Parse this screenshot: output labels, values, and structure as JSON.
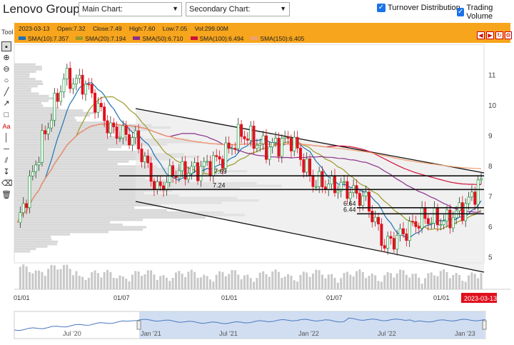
{
  "header": {
    "title": "Lenovo Group",
    "main_chart_select": "Main Chart:",
    "secondary_chart_select": "Secondary Chart:",
    "turnover_distribution": "Turnover Distribution",
    "trading_volume": "Trading Volume"
  },
  "toolbar": {
    "label": "Tool",
    "tools": [
      "cursor-icon",
      "zoom-in-icon",
      "zoom-out-icon",
      "circle-icon",
      "line-icon",
      "arrow-line-icon",
      "rectangle-icon",
      "text-icon",
      "vertical-line-icon",
      "horizontal-line-icon",
      "parallel-lines-icon",
      "measure-icon",
      "eraser-icon",
      "trash-icon"
    ],
    "text_tool_label": "Aa"
  },
  "info": {
    "date": "2023-03-13",
    "open": "Open:7.32",
    "close": "Close:7.49",
    "high": "High:7.60",
    "low": "Low:7.05",
    "vol": "Vol:299.00M",
    "sma": [
      {
        "label": "SMA(10):7.357",
        "color": "#1e73b4"
      },
      {
        "label": "SMA(20):7.194",
        "color": "#9a9a2a"
      },
      {
        "label": "SMA(50):6.710",
        "color": "#8b2f8b"
      },
      {
        "label": "SMA(100):6.494",
        "color": "#d0103a"
      },
      {
        "label": "SMA(150):6.405",
        "color": "#f0a070"
      }
    ]
  },
  "chart_data": {
    "type": "candlestick",
    "y_axis_ticks": [
      5,
      6,
      7,
      8,
      9,
      10,
      11
    ],
    "x_axis_ticks": [
      "01/01",
      "01/07",
      "01/01",
      "01/07",
      "01/01"
    ],
    "current_date_label": "2023-03-13",
    "levels": [
      {
        "value": 7.69,
        "label": "7.69"
      },
      {
        "value": 7.24,
        "label": "7.24"
      },
      {
        "value": 6.64,
        "label": "6.64"
      },
      {
        "value": 6.44,
        "label": "6.44"
      }
    ],
    "navigator_ticks": [
      "Jul '20",
      "Jan '21",
      "Jul '21",
      "Jan '22",
      "Jul '22",
      "Jan '23"
    ],
    "colors": {
      "up": "#1a9a3a",
      "down": "#e0101e",
      "accent": "#f7a51d"
    }
  }
}
